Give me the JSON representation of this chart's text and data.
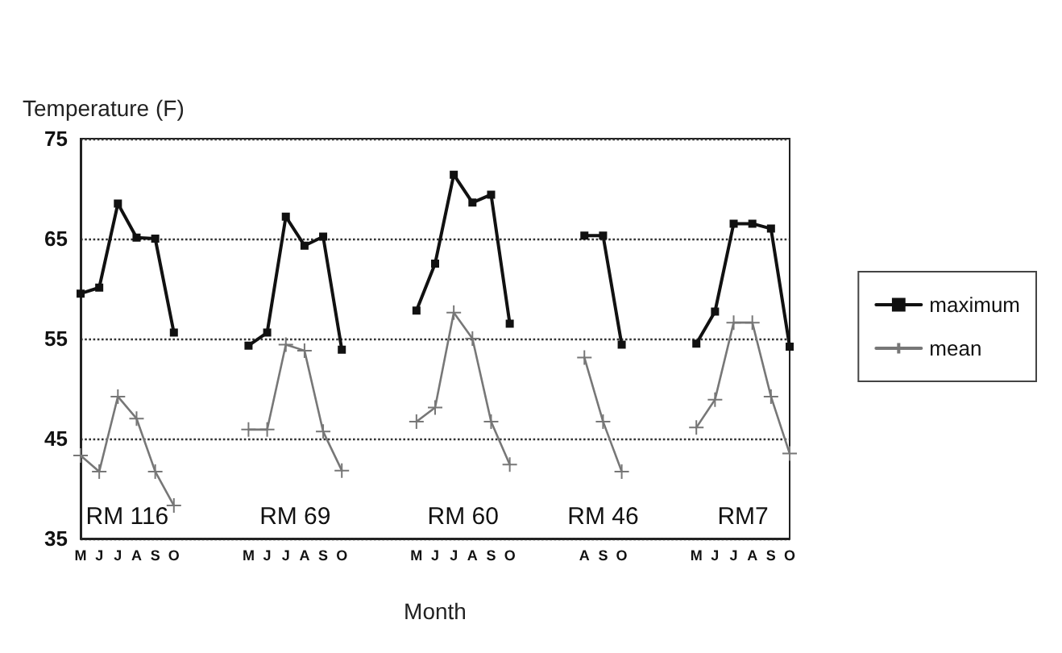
{
  "chart_data": {
    "type": "line",
    "ylabel": "Temperature (F)",
    "xlabel": "Month",
    "categories": [
      "M",
      "J",
      "J",
      "A",
      "S",
      "O",
      null,
      null,
      null,
      "M",
      "J",
      "J",
      "A",
      "S",
      "O",
      null,
      null,
      null,
      "M",
      "J",
      "J",
      "A",
      "S",
      "O",
      null,
      null,
      null,
      "A",
      "S",
      "O",
      null,
      null,
      null,
      "M",
      "J",
      "J",
      "A",
      "S",
      "O"
    ],
    "series": [
      {
        "name": "maximum",
        "color": "#111111",
        "marker": "square",
        "values": [
          59.5,
          60.1,
          68.5,
          65.1,
          65,
          55.6,
          null,
          null,
          null,
          54.3,
          55.6,
          67.2,
          64.3,
          65.2,
          53.9,
          null,
          null,
          null,
          57.8,
          62.5,
          71.4,
          68.6,
          69.4,
          56.5,
          null,
          null,
          null,
          65.3,
          65.3,
          54.4,
          null,
          null,
          null,
          54.5,
          57.7,
          66.5,
          66.5,
          66,
          54.2
        ]
      },
      {
        "name": "mean",
        "color": "#777777",
        "marker": "cross",
        "values": [
          43.3,
          41.7,
          49.2,
          47,
          41.7,
          38.3,
          null,
          null,
          null,
          45.9,
          45.9,
          54.4,
          53.8,
          45.7,
          41.8,
          null,
          null,
          null,
          46.7,
          48.1,
          57.6,
          55,
          46.7,
          42.4,
          null,
          null,
          null,
          53.1,
          46.7,
          41.7,
          null,
          null,
          null,
          46.1,
          48.9,
          56.6,
          56.6,
          49.2,
          43.5
        ]
      }
    ],
    "annotations": [
      "RM 116",
      "RM 69",
      "RM 60",
      "RM 46",
      "RM7"
    ],
    "ylim": [
      35,
      75
    ],
    "yticks": [
      35,
      45,
      55,
      65,
      75
    ],
    "grid": "y",
    "line_style": "solid",
    "legend": "right"
  }
}
